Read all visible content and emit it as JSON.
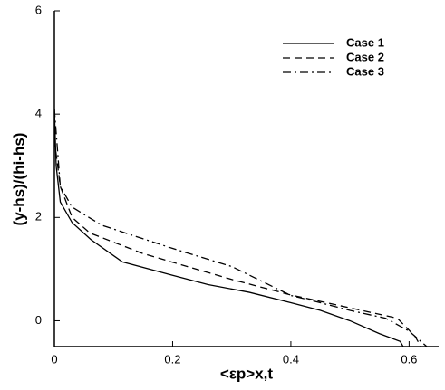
{
  "chart_data": {
    "type": "line",
    "xlabel": "<εp>x,t",
    "ylabel": "(y-hs)/(hi-hs)",
    "xlim": [
      0,
      0.65
    ],
    "ylim": [
      -0.5,
      6
    ],
    "xticks": [
      0,
      0.2,
      0.4,
      0.6
    ],
    "yticks": [
      0,
      2,
      4,
      6
    ],
    "legend": "upper-right",
    "series": [
      {
        "name": "Case 1",
        "color": "#000000",
        "style": "solid",
        "x": [
          0,
          0.003,
          0.01,
          0.03,
          0.062,
          0.115,
          0.2,
          0.26,
          0.33,
          0.4,
          0.45,
          0.5,
          0.55,
          0.585,
          0.59
        ],
        "values": [
          4.1,
          3.0,
          2.3,
          1.9,
          1.57,
          1.14,
          0.88,
          0.7,
          0.55,
          0.35,
          0.2,
          0,
          -0.25,
          -0.4,
          -0.5
        ]
      },
      {
        "name": "Case 2",
        "color": "#000000",
        "style": "dash",
        "x": [
          0,
          0.01,
          0.03,
          0.06,
          0.15,
          0.3,
          0.4,
          0.5,
          0.58,
          0.61,
          0.62
        ],
        "values": [
          3.5,
          2.6,
          2.0,
          1.7,
          1.3,
          0.8,
          0.5,
          0.25,
          0.05,
          -0.3,
          -0.5
        ]
      },
      {
        "name": "Case 3",
        "color": "#000000",
        "style": "dashdot",
        "x": [
          0,
          0.01,
          0.03,
          0.08,
          0.2,
          0.3,
          0.4,
          0.45,
          0.5,
          0.56,
          0.6,
          0.63
        ],
        "values": [
          4.1,
          2.6,
          2.2,
          1.85,
          1.4,
          1.05,
          0.49,
          0.35,
          0.2,
          0.05,
          -0.2,
          -0.5
        ]
      }
    ]
  }
}
